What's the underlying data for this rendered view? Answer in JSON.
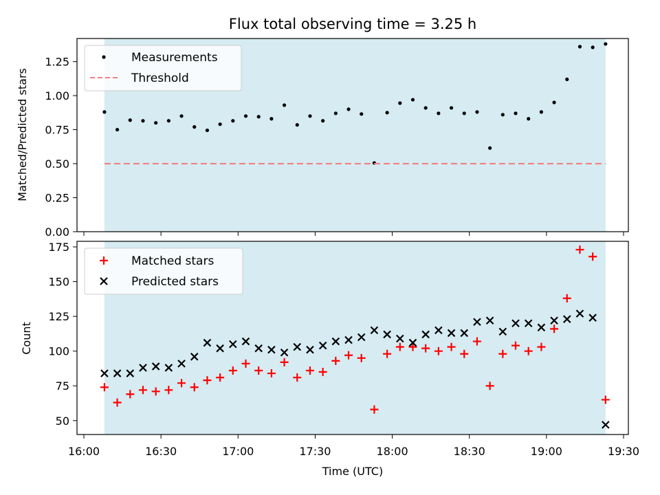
{
  "chart_data": [
    {
      "type": "scatter",
      "title": "Flux total observing time = 3.25 h",
      "xlabel": "",
      "ylabel": "Matched/Predicted stars",
      "ylim": [
        0,
        1.42
      ],
      "yticks": [
        "0.00",
        "0.25",
        "0.50",
        "0.75",
        "1.00",
        "1.25"
      ],
      "ytick_values": [
        0,
        0.25,
        0.5,
        0.75,
        1.0,
        1.25
      ],
      "legend_position": "top-left",
      "shaded_span": [
        "16:08",
        "19:23"
      ],
      "series": [
        {
          "name": "Measurements",
          "marker": "dot",
          "color": "#000000",
          "x": [
            "16:08",
            "16:13",
            "16:18",
            "16:23",
            "16:28",
            "16:33",
            "16:38",
            "16:43",
            "16:48",
            "16:53",
            "16:58",
            "17:03",
            "17:08",
            "17:13",
            "17:18",
            "17:23",
            "17:28",
            "17:33",
            "17:38",
            "17:43",
            "17:48",
            "17:53",
            "17:58",
            "18:03",
            "18:08",
            "18:13",
            "18:18",
            "18:23",
            "18:28",
            "18:33",
            "18:38",
            "18:43",
            "18:48",
            "18:53",
            "18:58",
            "19:03",
            "19:08",
            "19:13",
            "19:18",
            "19:23"
          ],
          "y": [
            0.88,
            0.75,
            0.82,
            0.815,
            0.8,
            0.815,
            0.85,
            0.77,
            0.745,
            0.79,
            0.815,
            0.85,
            0.845,
            0.83,
            0.93,
            0.785,
            0.85,
            0.815,
            0.87,
            0.9,
            0.865,
            0.505,
            0.875,
            0.945,
            0.97,
            0.91,
            0.87,
            0.91,
            0.87,
            0.88,
            0.615,
            0.86,
            0.87,
            0.83,
            0.88,
            0.95,
            1.12,
            1.36,
            1.355,
            1.38
          ]
        },
        {
          "name": "Threshold",
          "marker": "dashed-line",
          "color": "#f08080",
          "x": [
            "16:08",
            "19:23"
          ],
          "y": [
            0.5,
            0.5
          ]
        }
      ]
    },
    {
      "type": "scatter",
      "title": "",
      "xlabel": "Time (UTC)",
      "ylabel": "Count",
      "ylim": [
        40,
        179
      ],
      "yticks": [
        "50",
        "75",
        "100",
        "125",
        "150",
        "175"
      ],
      "ytick_values": [
        50,
        75,
        100,
        125,
        150,
        175
      ],
      "xticks": [
        "16:00",
        "16:30",
        "17:00",
        "17:30",
        "18:00",
        "18:30",
        "19:00",
        "19:30"
      ],
      "legend_position": "top-left",
      "shaded_span": [
        "16:08",
        "19:23"
      ],
      "series": [
        {
          "name": "Matched stars",
          "marker": "plus",
          "color": "#ff0000",
          "x": [
            "16:08",
            "16:13",
            "16:18",
            "16:23",
            "16:28",
            "16:33",
            "16:38",
            "16:43",
            "16:48",
            "16:53",
            "16:58",
            "17:03",
            "17:08",
            "17:13",
            "17:18",
            "17:23",
            "17:28",
            "17:33",
            "17:38",
            "17:43",
            "17:48",
            "17:53",
            "17:58",
            "18:03",
            "18:08",
            "18:13",
            "18:18",
            "18:23",
            "18:28",
            "18:33",
            "18:38",
            "18:43",
            "18:48",
            "18:53",
            "18:58",
            "19:03",
            "19:08",
            "19:13",
            "19:18",
            "19:23"
          ],
          "y": [
            74,
            63,
            69,
            72,
            71,
            72,
            77,
            74,
            79,
            81,
            86,
            91,
            86,
            84,
            92,
            81,
            86,
            85,
            93,
            97,
            95,
            58,
            98,
            103,
            103,
            102,
            100,
            103,
            98,
            107,
            75,
            98,
            104,
            100,
            103,
            116,
            138,
            173,
            168,
            65
          ]
        },
        {
          "name": "Predicted stars",
          "marker": "x",
          "color": "#000000",
          "x": [
            "16:08",
            "16:13",
            "16:18",
            "16:23",
            "16:28",
            "16:33",
            "16:38",
            "16:43",
            "16:48",
            "16:53",
            "16:58",
            "17:03",
            "17:08",
            "17:13",
            "17:18",
            "17:23",
            "17:28",
            "17:33",
            "17:38",
            "17:43",
            "17:48",
            "17:53",
            "17:58",
            "18:03",
            "18:08",
            "18:13",
            "18:18",
            "18:23",
            "18:28",
            "18:33",
            "18:38",
            "18:43",
            "18:48",
            "18:53",
            "18:58",
            "19:03",
            "19:08",
            "19:13",
            "19:18",
            "19:23"
          ],
          "y": [
            84,
            84,
            84,
            88,
            89,
            88,
            91,
            96,
            106,
            102,
            105,
            107,
            102,
            101,
            99,
            103,
            101,
            104,
            107,
            108,
            110,
            115,
            112,
            109,
            106,
            112,
            115,
            113,
            113,
            121,
            122,
            114,
            120,
            120,
            117,
            122,
            123,
            127,
            124,
            47
          ]
        }
      ]
    }
  ],
  "colors": {
    "shade": "#add8e6",
    "matched": "#ff0000",
    "predicted": "#000000",
    "threshold": "#f08080"
  }
}
